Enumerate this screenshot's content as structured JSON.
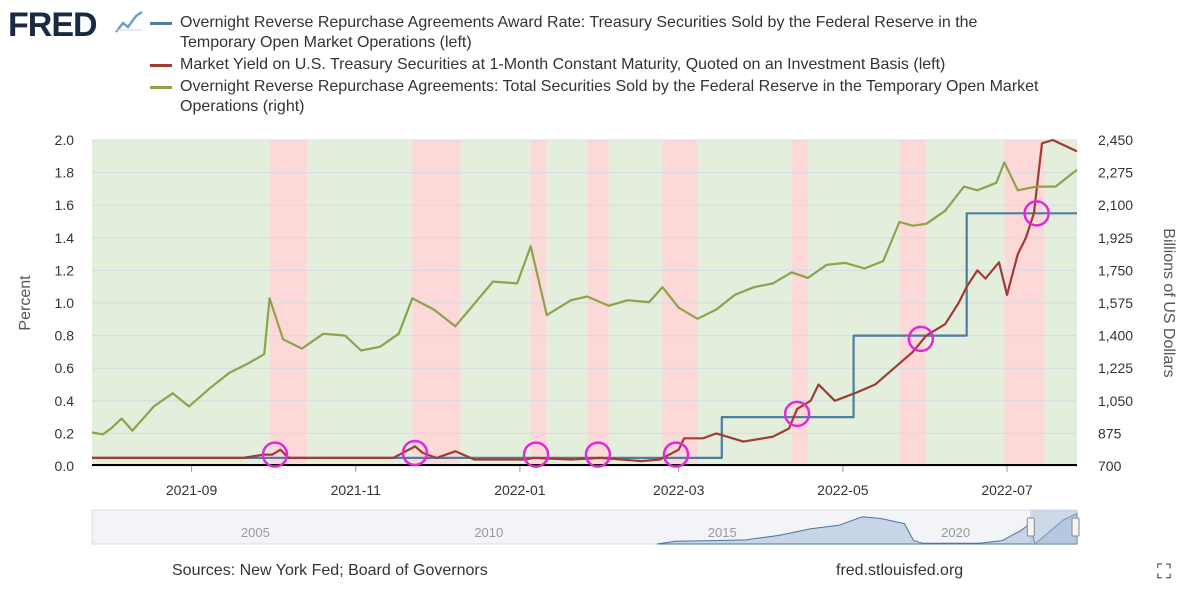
{
  "header": {
    "logo_text": "FRED",
    "logo_icon": "line-chart-icon",
    "legend": [
      {
        "label": "Overnight Reverse Repurchase Agreements Award Rate: Treasury Securities Sold by the Federal Reserve in the Temporary Open Market Operations (left)",
        "color": "#4c7ea0"
      },
      {
        "label": "Market Yield on U.S. Treasury Securities at 1-Month Constant Maturity, Quoted on an Investment Basis (left)",
        "color": "#a03c32"
      },
      {
        "label": "Overnight Reverse Repurchase Agreements: Total Securities Sold by the Federal Reserve in the Temporary Open Market Operations (right)",
        "color": "#8da34a"
      }
    ]
  },
  "footer": {
    "sources": "Sources: New York Fed; Board of Governors",
    "url": "fred.stlouisfed.org",
    "expand_icon": "expand-icon"
  },
  "chart_data": {
    "type": "line",
    "title": "",
    "x_domain": [
      "2021-07-26",
      "2022-07-27"
    ],
    "x_ticks": [
      {
        "date": "2021-09-01",
        "label": "2021-09"
      },
      {
        "date": "2021-11-01",
        "label": "2021-11"
      },
      {
        "date": "2022-01-01",
        "label": "2022-01"
      },
      {
        "date": "2022-03-01",
        "label": "2022-03"
      },
      {
        "date": "2022-05-01",
        "label": "2022-05"
      },
      {
        "date": "2022-07-01",
        "label": "2022-07"
      }
    ],
    "ylabel_left": "Percent",
    "ylim_left": [
      0,
      2.0
    ],
    "yticks_left": [
      "0.0",
      "0.2",
      "0.4",
      "0.6",
      "0.8",
      "1.0",
      "1.2",
      "1.4",
      "1.6",
      "1.8",
      "2.0"
    ],
    "ylabel_right": "Billions of US Dollars",
    "ylim_right": [
      700,
      2450
    ],
    "yticks_right": [
      "700",
      "875",
      "1,050",
      "1,225",
      "1,400",
      "1,575",
      "1,750",
      "1,925",
      "2,100",
      "2,275",
      "2,450"
    ],
    "background_bands": [
      {
        "start": "2021-07-26",
        "end": "2021-09-30",
        "color": "green"
      },
      {
        "start": "2021-09-30",
        "end": "2021-10-14",
        "color": "red"
      },
      {
        "start": "2021-10-14",
        "end": "2021-11-22",
        "color": "green"
      },
      {
        "start": "2021-11-22",
        "end": "2021-12-10",
        "color": "red"
      },
      {
        "start": "2021-12-10",
        "end": "2022-01-05",
        "color": "green"
      },
      {
        "start": "2022-01-05",
        "end": "2022-01-11",
        "color": "red"
      },
      {
        "start": "2022-01-11",
        "end": "2022-01-26",
        "color": "green"
      },
      {
        "start": "2022-01-26",
        "end": "2022-02-03",
        "color": "red"
      },
      {
        "start": "2022-02-03",
        "end": "2022-02-23",
        "color": "green"
      },
      {
        "start": "2022-02-23",
        "end": "2022-03-08",
        "color": "red"
      },
      {
        "start": "2022-03-08",
        "end": "2022-04-12",
        "color": "green"
      },
      {
        "start": "2022-04-12",
        "end": "2022-04-18",
        "color": "red"
      },
      {
        "start": "2022-04-18",
        "end": "2022-05-22",
        "color": "green"
      },
      {
        "start": "2022-05-22",
        "end": "2022-06-01",
        "color": "red"
      },
      {
        "start": "2022-06-01",
        "end": "2022-06-30",
        "color": "green"
      },
      {
        "start": "2022-06-30",
        "end": "2022-07-15",
        "color": "red"
      },
      {
        "start": "2022-07-15",
        "end": "2022-07-27",
        "color": "green"
      }
    ],
    "series": [
      {
        "name": "Overnight Reverse Repurchase Agreements Award Rate",
        "axis": "left",
        "color": "#4c7ea0",
        "step": true,
        "points": [
          [
            "2021-07-26",
            0.05
          ],
          [
            "2022-03-17",
            0.05
          ],
          [
            "2022-03-17",
            0.3
          ],
          [
            "2022-05-05",
            0.3
          ],
          [
            "2022-05-05",
            0.8
          ],
          [
            "2022-06-16",
            0.8
          ],
          [
            "2022-06-16",
            1.55
          ],
          [
            "2022-06-21",
            1.55
          ],
          [
            "2022-06-28",
            1.55
          ],
          [
            "2022-07-27",
            1.55
          ]
        ]
      },
      {
        "name": "Market Yield on U.S. Treasury Securities at 1-Month Constant Maturity",
        "axis": "left",
        "color": "#a03c32",
        "step": false,
        "points": [
          [
            "2021-07-26",
            0.05
          ],
          [
            "2021-08-15",
            0.05
          ],
          [
            "2021-09-01",
            0.05
          ],
          [
            "2021-09-20",
            0.05
          ],
          [
            "2021-09-28",
            0.07
          ],
          [
            "2021-10-01",
            0.07
          ],
          [
            "2021-10-04",
            0.1
          ],
          [
            "2021-10-07",
            0.05
          ],
          [
            "2021-10-20",
            0.05
          ],
          [
            "2021-11-15",
            0.05
          ],
          [
            "2021-11-23",
            0.12
          ],
          [
            "2021-11-26",
            0.08
          ],
          [
            "2021-12-01",
            0.05
          ],
          [
            "2021-12-08",
            0.09
          ],
          [
            "2021-12-15",
            0.04
          ],
          [
            "2022-01-03",
            0.04
          ],
          [
            "2022-01-06",
            0.05
          ],
          [
            "2022-01-20",
            0.04
          ],
          [
            "2022-01-31",
            0.05
          ],
          [
            "2022-02-15",
            0.03
          ],
          [
            "2022-02-22",
            0.04
          ],
          [
            "2022-03-01",
            0.1
          ],
          [
            "2022-03-03",
            0.17
          ],
          [
            "2022-03-10",
            0.17
          ],
          [
            "2022-03-15",
            0.2
          ],
          [
            "2022-03-25",
            0.15
          ],
          [
            "2022-04-05",
            0.18
          ],
          [
            "2022-04-11",
            0.23
          ],
          [
            "2022-04-14",
            0.35
          ],
          [
            "2022-04-19",
            0.4
          ],
          [
            "2022-04-22",
            0.5
          ],
          [
            "2022-04-28",
            0.4
          ],
          [
            "2022-05-06",
            0.45
          ],
          [
            "2022-05-13",
            0.5
          ],
          [
            "2022-05-20",
            0.6
          ],
          [
            "2022-05-27",
            0.7
          ],
          [
            "2022-06-01",
            0.8
          ],
          [
            "2022-06-08",
            0.87
          ],
          [
            "2022-06-13",
            1.0
          ],
          [
            "2022-06-16",
            1.1
          ],
          [
            "2022-06-20",
            1.2
          ],
          [
            "2022-06-23",
            1.15
          ],
          [
            "2022-06-28",
            1.25
          ],
          [
            "2022-07-01",
            1.05
          ],
          [
            "2022-07-05",
            1.3
          ],
          [
            "2022-07-08",
            1.4
          ],
          [
            "2022-07-11",
            1.55
          ],
          [
            "2022-07-14",
            1.98
          ],
          [
            "2022-07-18",
            2.0
          ],
          [
            "2022-07-27",
            1.93
          ]
        ]
      },
      {
        "name": "Overnight Reverse Repurchase Agreements: Total Securities Sold",
        "axis": "right",
        "color": "#8da34a",
        "step": false,
        "points": [
          [
            "2021-07-26",
            880
          ],
          [
            "2021-07-30",
            870
          ],
          [
            "2021-08-02",
            900
          ],
          [
            "2021-08-06",
            955
          ],
          [
            "2021-08-10",
            890
          ],
          [
            "2021-08-18",
            1020
          ],
          [
            "2021-08-25",
            1090
          ],
          [
            "2021-08-31",
            1020
          ],
          [
            "2021-09-08",
            1120
          ],
          [
            "2021-09-15",
            1200
          ],
          [
            "2021-09-22",
            1250
          ],
          [
            "2021-09-28",
            1300
          ],
          [
            "2021-09-30",
            1600
          ],
          [
            "2021-10-05",
            1380
          ],
          [
            "2021-10-12",
            1330
          ],
          [
            "2021-10-20",
            1410
          ],
          [
            "2021-10-28",
            1400
          ],
          [
            "2021-11-03",
            1320
          ],
          [
            "2021-11-10",
            1340
          ],
          [
            "2021-11-17",
            1410
          ],
          [
            "2021-11-22",
            1600
          ],
          [
            "2021-11-30",
            1540
          ],
          [
            "2021-12-08",
            1450
          ],
          [
            "2021-12-15",
            1570
          ],
          [
            "2021-12-22",
            1690
          ],
          [
            "2021-12-31",
            1680
          ],
          [
            "2022-01-05",
            1880
          ],
          [
            "2022-01-11",
            1510
          ],
          [
            "2022-01-20",
            1590
          ],
          [
            "2022-01-26",
            1610
          ],
          [
            "2022-02-03",
            1560
          ],
          [
            "2022-02-10",
            1590
          ],
          [
            "2022-02-18",
            1580
          ],
          [
            "2022-02-23",
            1660
          ],
          [
            "2022-03-01",
            1550
          ],
          [
            "2022-03-08",
            1490
          ],
          [
            "2022-03-15",
            1540
          ],
          [
            "2022-03-22",
            1620
          ],
          [
            "2022-03-29",
            1660
          ],
          [
            "2022-04-05",
            1680
          ],
          [
            "2022-04-12",
            1740
          ],
          [
            "2022-04-18",
            1710
          ],
          [
            "2022-04-25",
            1780
          ],
          [
            "2022-05-02",
            1790
          ],
          [
            "2022-05-09",
            1760
          ],
          [
            "2022-05-16",
            1800
          ],
          [
            "2022-05-22",
            2010
          ],
          [
            "2022-05-27",
            1990
          ],
          [
            "2022-06-01",
            2000
          ],
          [
            "2022-06-08",
            2070
          ],
          [
            "2022-06-15",
            2200
          ],
          [
            "2022-06-20",
            2180
          ],
          [
            "2022-06-27",
            2220
          ],
          [
            "2022-06-30",
            2330
          ],
          [
            "2022-07-05",
            2180
          ],
          [
            "2022-07-12",
            2200
          ],
          [
            "2022-07-19",
            2200
          ],
          [
            "2022-07-27",
            2290
          ]
        ]
      }
    ],
    "annotations": [
      {
        "type": "circle",
        "date": "2021-10-02",
        "value": 0.07
      },
      {
        "type": "circle",
        "date": "2021-11-23",
        "value": 0.08
      },
      {
        "type": "circle",
        "date": "2022-01-07",
        "value": 0.07
      },
      {
        "type": "circle",
        "date": "2022-01-30",
        "value": 0.07
      },
      {
        "type": "circle",
        "date": "2022-02-28",
        "value": 0.07
      },
      {
        "type": "circle",
        "date": "2022-04-14",
        "value": 0.32
      },
      {
        "type": "circle",
        "date": "2022-05-30",
        "value": 0.78
      },
      {
        "type": "circle",
        "date": "2022-07-12",
        "value": 1.55
      }
    ],
    "navigator": {
      "ticks": [
        "2005",
        "2010",
        "2015",
        "2020"
      ]
    }
  }
}
